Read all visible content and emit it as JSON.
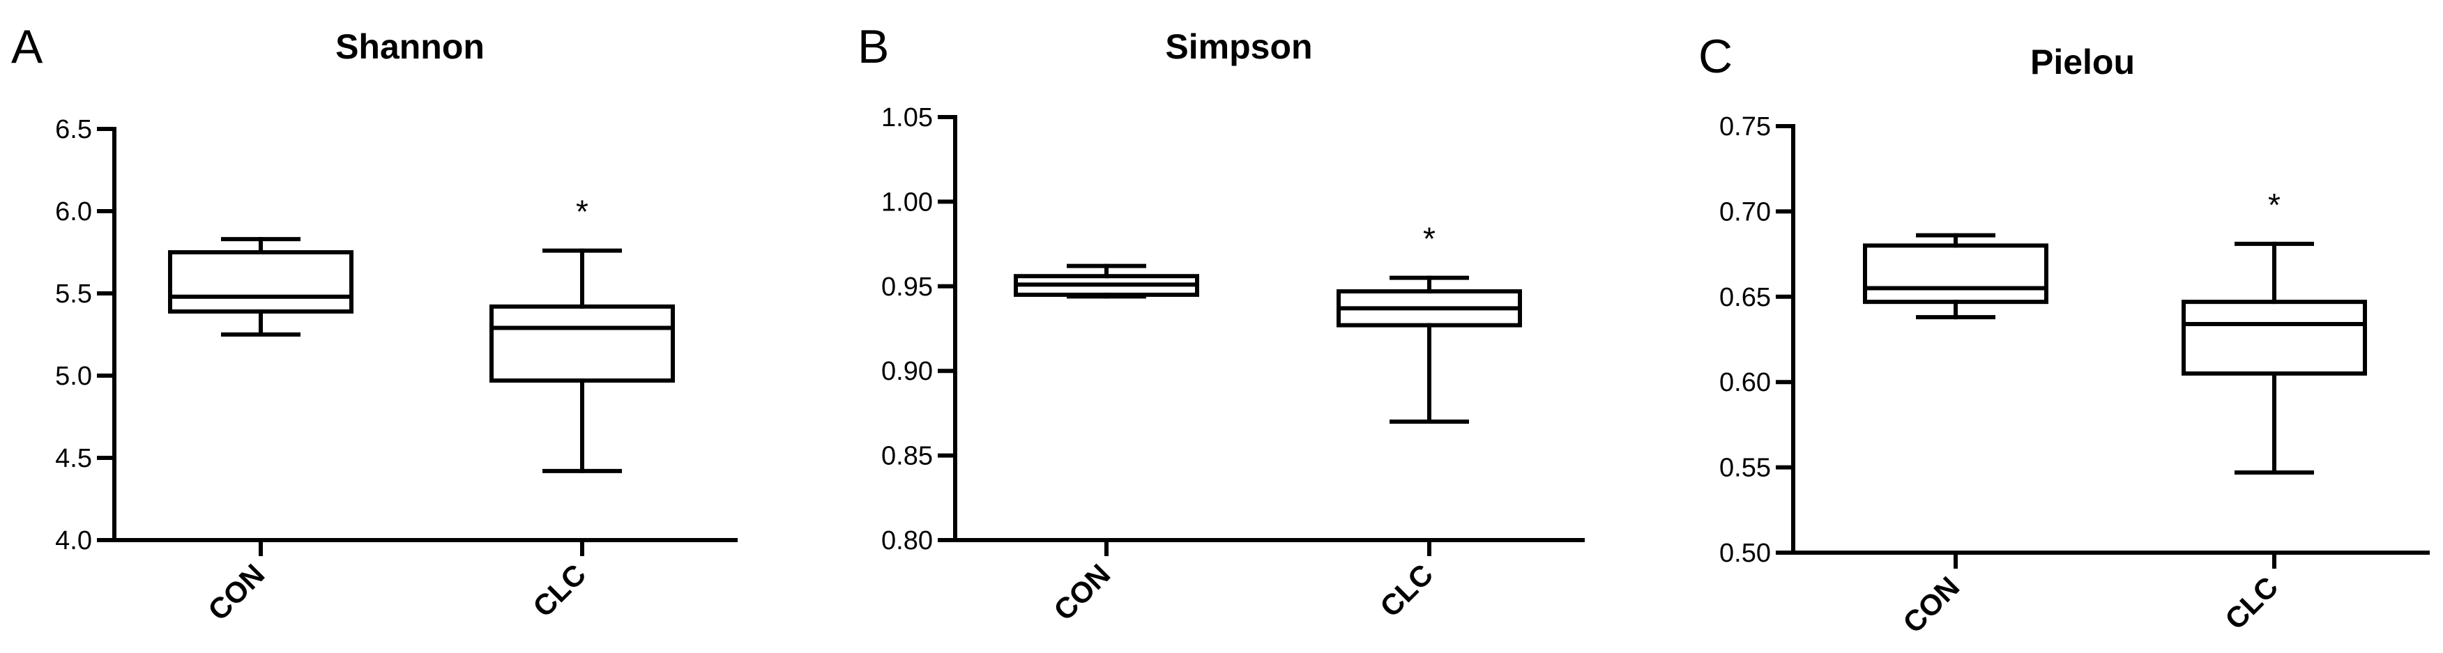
{
  "chart_data": [
    {
      "type": "box",
      "panel_label": "A",
      "title": "Shannon",
      "categories": [
        "CON",
        "CLC"
      ],
      "ylim": [
        4.0,
        6.5
      ],
      "yticks": [
        "4.0",
        "4.5",
        "5.0",
        "5.5",
        "6.0",
        "6.5"
      ],
      "boxes": [
        {
          "category": "CON",
          "min": 5.25,
          "q1": 5.39,
          "median": 5.48,
          "q3": 5.75,
          "max": 5.83,
          "annotation": ""
        },
        {
          "category": "CLC",
          "min": 4.42,
          "q1": 4.97,
          "median": 5.29,
          "q3": 5.42,
          "max": 5.76,
          "annotation": "*"
        }
      ]
    },
    {
      "type": "box",
      "panel_label": "B",
      "title": "Simpson",
      "categories": [
        "CON",
        "CLC"
      ],
      "ylim": [
        0.8,
        1.05
      ],
      "yticks": [
        "0.80",
        "0.85",
        "0.90",
        "0.95",
        "1.00",
        "1.05"
      ],
      "boxes": [
        {
          "category": "CON",
          "min": 0.944,
          "q1": 0.945,
          "median": 0.951,
          "q3": 0.956,
          "max": 0.962,
          "annotation": ""
        },
        {
          "category": "CLC",
          "min": 0.87,
          "q1": 0.927,
          "median": 0.937,
          "q3": 0.947,
          "max": 0.955,
          "annotation": "*"
        }
      ]
    },
    {
      "type": "box",
      "panel_label": "C",
      "title": "Pielou",
      "categories": [
        "CON",
        "CLC"
      ],
      "ylim": [
        0.5,
        0.75
      ],
      "yticks": [
        "0.50",
        "0.55",
        "0.60",
        "0.65",
        "0.70",
        "0.75"
      ],
      "boxes": [
        {
          "category": "CON",
          "min": 0.638,
          "q1": 0.647,
          "median": 0.655,
          "q3": 0.68,
          "max": 0.686,
          "annotation": ""
        },
        {
          "category": "CLC",
          "min": 0.547,
          "q1": 0.605,
          "median": 0.634,
          "q3": 0.647,
          "max": 0.681,
          "annotation": "*"
        }
      ]
    }
  ]
}
